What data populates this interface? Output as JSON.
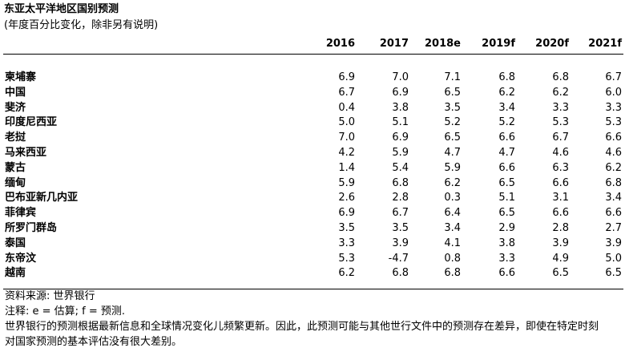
{
  "header": {
    "title": "东亚太平洋地区国别预测",
    "subtitle": "(年度百分比变化，除非另有说明)"
  },
  "table": {
    "columns": [
      "2016",
      "2017",
      "2018e",
      "2019f",
      "2020f",
      "2021f"
    ],
    "rows": [
      [
        "柬埔寨",
        "6.9",
        "7.0",
        "7.1",
        "6.8",
        "6.8",
        "6.7"
      ],
      [
        "中国",
        "6.7",
        "6.9",
        "6.5",
        "6.2",
        "6.2",
        "6.0"
      ],
      [
        "斐济",
        "0.4",
        "3.8",
        "3.5",
        "3.4",
        "3.3",
        "3.3"
      ],
      [
        "印度尼西亚",
        "5.0",
        "5.1",
        "5.2",
        "5.2",
        "5.3",
        "5.3"
      ],
      [
        "老挝",
        "7.0",
        "6.9",
        "6.5",
        "6.6",
        "6.7",
        "6.6"
      ],
      [
        "马来西亚",
        "4.2",
        "5.9",
        "4.7",
        "4.7",
        "4.6",
        "4.6"
      ],
      [
        "蒙古",
        "1.4",
        "5.4",
        "5.9",
        "6.6",
        "6.3",
        "6.2"
      ],
      [
        "缅甸",
        "5.9",
        "6.8",
        "6.2",
        "6.5",
        "6.6",
        "6.8"
      ],
      [
        "巴布亚新几内亚",
        "2.6",
        "2.8",
        "0.3",
        "5.1",
        "3.1",
        "3.4"
      ],
      [
        "菲律宾",
        "6.9",
        "6.7",
        "6.4",
        "6.5",
        "6.6",
        "6.6"
      ],
      [
        "所罗门群岛",
        "3.5",
        "3.5",
        "3.4",
        "2.9",
        "2.8",
        "2.7"
      ],
      [
        "泰国",
        "3.3",
        "3.9",
        "4.1",
        "3.8",
        "3.9",
        "3.9"
      ],
      [
        "东帝汶",
        "5.3",
        "-4.7",
        "0.8",
        "3.3",
        "4.9",
        "5.0"
      ],
      [
        "越南",
        "6.2",
        "6.8",
        "6.8",
        "6.6",
        "6.5",
        "6.5"
      ]
    ]
  },
  "notes": [
    "资料来源: 世界银行",
    "注释: e = 估算; f = 预测.",
    "世界银行的预测根据最新信息和全球情况变化儿频繁更新。因此，此预测可能与其他世行文件中的预测存在差异，即使在特定时刻",
    "对国家预测的基本评估没有很大差别。"
  ]
}
